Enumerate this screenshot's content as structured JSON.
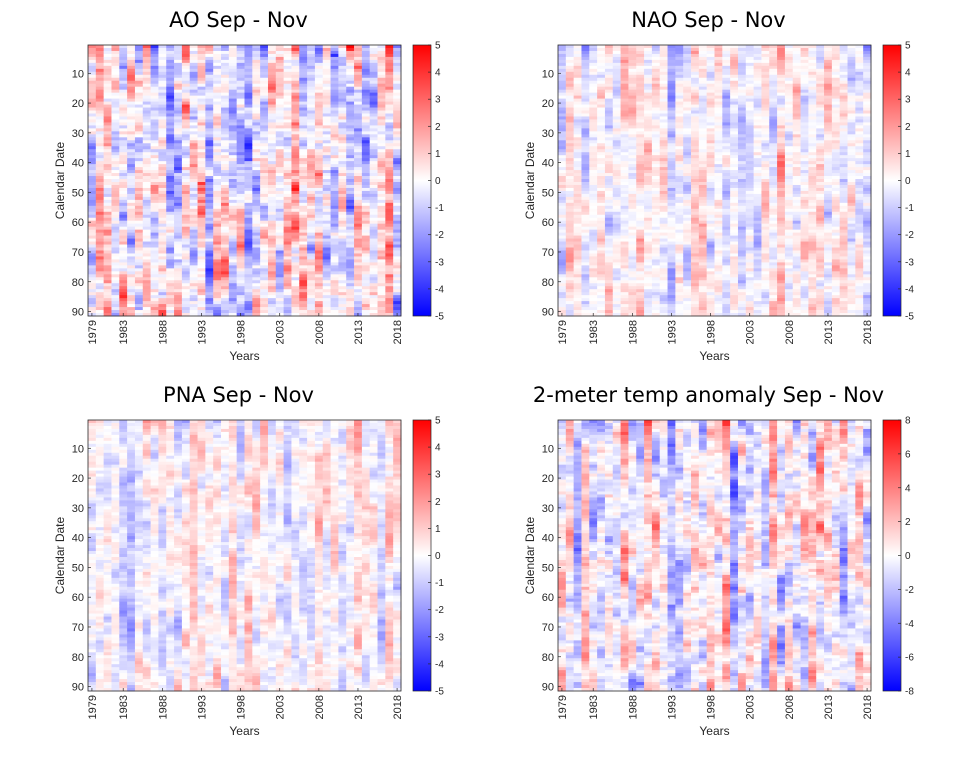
{
  "figure": {
    "chart_data": [
      {
        "type": "heatmap",
        "title": "AO Sep - Nov",
        "xlabel": "Years",
        "ylabel": "Calendar Date",
        "x_range": [
          1979,
          2018
        ],
        "y_range": [
          1,
          91
        ],
        "x_ticks": [
          "1979",
          "1983",
          "1988",
          "1993",
          "1998",
          "2003",
          "2008",
          "2013",
          "2018"
        ],
        "y_ticks": [
          "10",
          "20",
          "30",
          "40",
          "50",
          "60",
          "70",
          "80",
          "90"
        ],
        "colorbar": {
          "min": -5,
          "max": 5,
          "ticks": [
            "5",
            "4",
            "3",
            "2",
            "1",
            "0",
            "-1",
            "-2",
            "-3",
            "-4",
            "-5"
          ]
        },
        "colormap": [
          "#0000ff",
          "#ffffff",
          "#ff0000"
        ],
        "amplitude": 2.2,
        "seed": 11
      },
      {
        "type": "heatmap",
        "title": "NAO Sep - Nov",
        "xlabel": "Years",
        "ylabel": "Calendar Date",
        "x_range": [
          1979,
          2018
        ],
        "y_range": [
          1,
          91
        ],
        "x_ticks": [
          "1979",
          "1983",
          "1988",
          "1993",
          "1998",
          "2003",
          "2008",
          "2013",
          "2018"
        ],
        "y_ticks": [
          "10",
          "20",
          "30",
          "40",
          "50",
          "60",
          "70",
          "80",
          "90"
        ],
        "colorbar": {
          "min": -5,
          "max": 5,
          "ticks": [
            "5",
            "4",
            "3",
            "2",
            "1",
            "0",
            "-1",
            "-2",
            "-3",
            "-4",
            "-5"
          ]
        },
        "colormap": [
          "#0000ff",
          "#ffffff",
          "#ff0000"
        ],
        "amplitude": 1.3,
        "seed": 23
      },
      {
        "type": "heatmap",
        "title": "PNA Sep - Nov",
        "xlabel": "Years",
        "ylabel": "Calendar Date",
        "x_range": [
          1979,
          2018
        ],
        "y_range": [
          1,
          91
        ],
        "x_ticks": [
          "1979",
          "1983",
          "1988",
          "1993",
          "1998",
          "2003",
          "2008",
          "2013",
          "2018"
        ],
        "y_ticks": [
          "10",
          "20",
          "30",
          "40",
          "50",
          "60",
          "70",
          "80",
          "90"
        ],
        "colorbar": {
          "min": -5,
          "max": 5,
          "ticks": [
            "5",
            "4",
            "3",
            "2",
            "1",
            "0",
            "-1",
            "-2",
            "-3",
            "-4",
            "-5"
          ]
        },
        "colormap": [
          "#0000ff",
          "#ffffff",
          "#ff0000"
        ],
        "amplitude": 1.2,
        "seed": 37
      },
      {
        "type": "heatmap",
        "title": "2-meter temp anomaly Sep - Nov",
        "xlabel": "Years",
        "ylabel": "Calendar Date",
        "x_range": [
          1979,
          2018
        ],
        "y_range": [
          1,
          91
        ],
        "x_ticks": [
          "1979",
          "1983",
          "1988",
          "1993",
          "1998",
          "2003",
          "2008",
          "2013",
          "2018"
        ],
        "y_ticks": [
          "10",
          "20",
          "30",
          "40",
          "50",
          "60",
          "70",
          "80",
          "90"
        ],
        "colorbar": {
          "min": -8,
          "max": 8,
          "ticks": [
            "8",
            "6",
            "4",
            "2",
            "0",
            "-2",
            "-4",
            "-6",
            "-8"
          ]
        },
        "colormap": [
          "#0000ff",
          "#ffffff",
          "#ff0000"
        ],
        "amplitude": 3.0,
        "seed": 53
      }
    ]
  }
}
